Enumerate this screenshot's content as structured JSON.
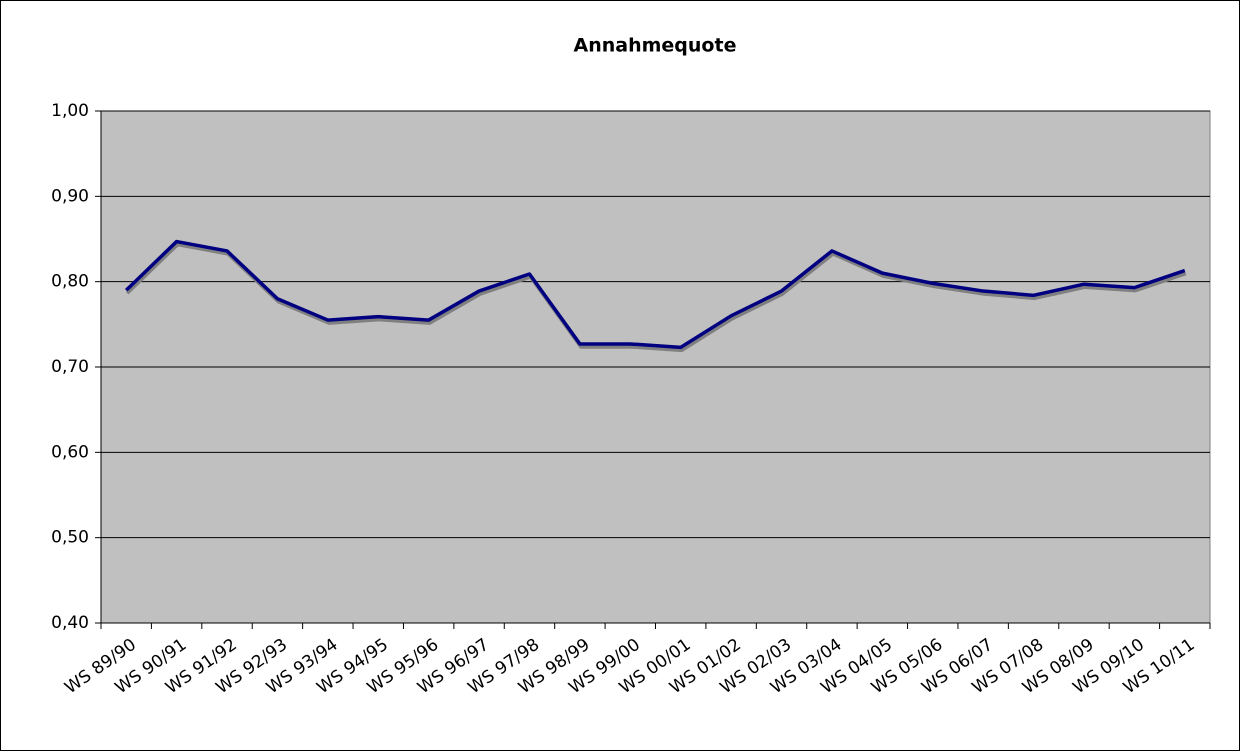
{
  "chart_data": {
    "type": "line",
    "title": "Annahmequote",
    "categories": [
      "WS 89/90",
      "WS 90/91",
      "WS 91/92",
      "WS 92/93",
      "WS 93/94",
      "WS 94/95",
      "WS 95/96",
      "WS 96/97",
      "WS 97/98",
      "WS 98/99",
      "WS 99/00",
      "WS 00/01",
      "WS 01/02",
      "WS 02/03",
      "WS 03/04",
      "WS 04/05",
      "WS 05/06",
      "WS 06/07",
      "WS 07/08",
      "WS 08/09",
      "WS 09/10",
      "WS 10/11"
    ],
    "series": [
      {
        "name": "Annahmequote",
        "color": "#000080",
        "values": [
          0.79,
          0.847,
          0.836,
          0.78,
          0.755,
          0.759,
          0.755,
          0.789,
          0.809,
          0.727,
          0.727,
          0.723,
          0.76,
          0.789,
          0.836,
          0.81,
          0.798,
          0.789,
          0.784,
          0.797,
          0.793,
          0.813
        ]
      }
    ],
    "ylim": [
      0.4,
      1.0
    ],
    "yticks": [
      {
        "value": 0.4,
        "label": "0,40"
      },
      {
        "value": 0.5,
        "label": "0,50"
      },
      {
        "value": 0.6,
        "label": "0,60"
      },
      {
        "value": 0.7,
        "label": "0,70"
      },
      {
        "value": 0.8,
        "label": "0,80"
      },
      {
        "value": 0.9,
        "label": "0,90"
      },
      {
        "value": 1.0,
        "label": "1,00"
      }
    ],
    "grid": true,
    "plot_background": "#c0c0c0"
  }
}
